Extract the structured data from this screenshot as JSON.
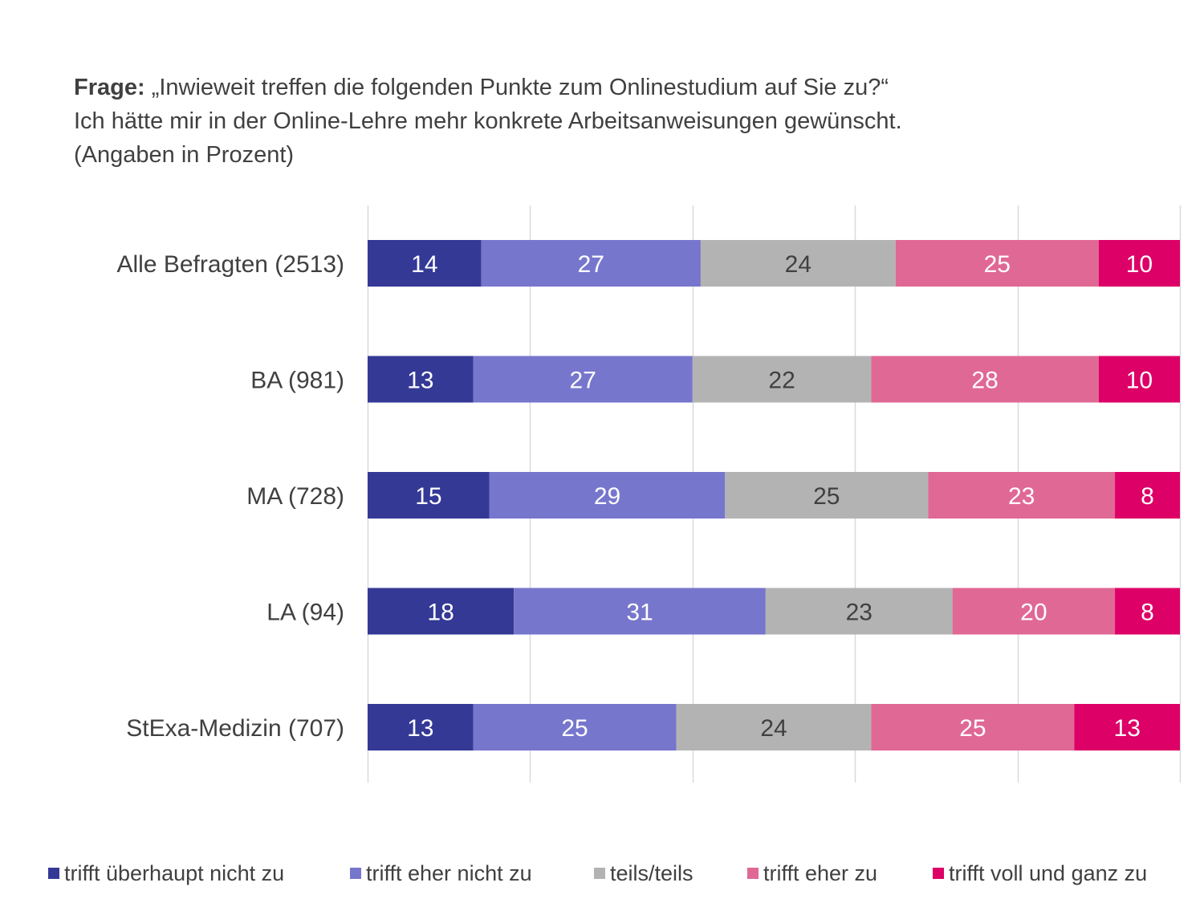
{
  "title": {
    "prefix": "Frage:",
    "question": " „Inwieweit treffen die folgenden Punkte zum Onlinestudium auf Sie zu?“",
    "statement": "Ich hätte mir in der Online-Lehre mehr konkrete Arbeitsanweisungen gewünscht.",
    "note": "(Angaben in Prozent)"
  },
  "chart_data": {
    "type": "bar",
    "orientation": "horizontal",
    "stacked": true,
    "categories": [
      "Alle Befragten (2513)",
      "BA (981)",
      "MA (728)",
      "LA (94)",
      "StExa-Medizin (707)"
    ],
    "series": [
      {
        "name": "trifft überhaupt nicht zu",
        "color": "#343996",
        "label_color": "#ffffff",
        "values": [
          14,
          13,
          15,
          18,
          13
        ]
      },
      {
        "name": "trifft eher nicht zu",
        "color": "#7776cd",
        "label_color": "#ffffff",
        "values": [
          27,
          27,
          29,
          31,
          25
        ]
      },
      {
        "name": "teils/teils",
        "color": "#b3b3b3",
        "label_color": "#404040",
        "values": [
          24,
          22,
          25,
          23,
          24
        ]
      },
      {
        "name": "trifft eher zu",
        "color": "#e06895",
        "label_color": "#ffffff",
        "values": [
          25,
          28,
          23,
          20,
          25
        ]
      },
      {
        "name": "trifft voll und ganz zu",
        "color": "#dc0067",
        "label_color": "#ffffff",
        "values": [
          10,
          10,
          8,
          8,
          13
        ]
      }
    ],
    "xlim": [
      0,
      100
    ],
    "grid": true,
    "gridline_values": [
      0,
      20,
      40,
      60,
      80,
      100
    ],
    "gridline_color": "#d9d9d9",
    "tick_labels_visible": false,
    "legend_position": "bottom"
  }
}
